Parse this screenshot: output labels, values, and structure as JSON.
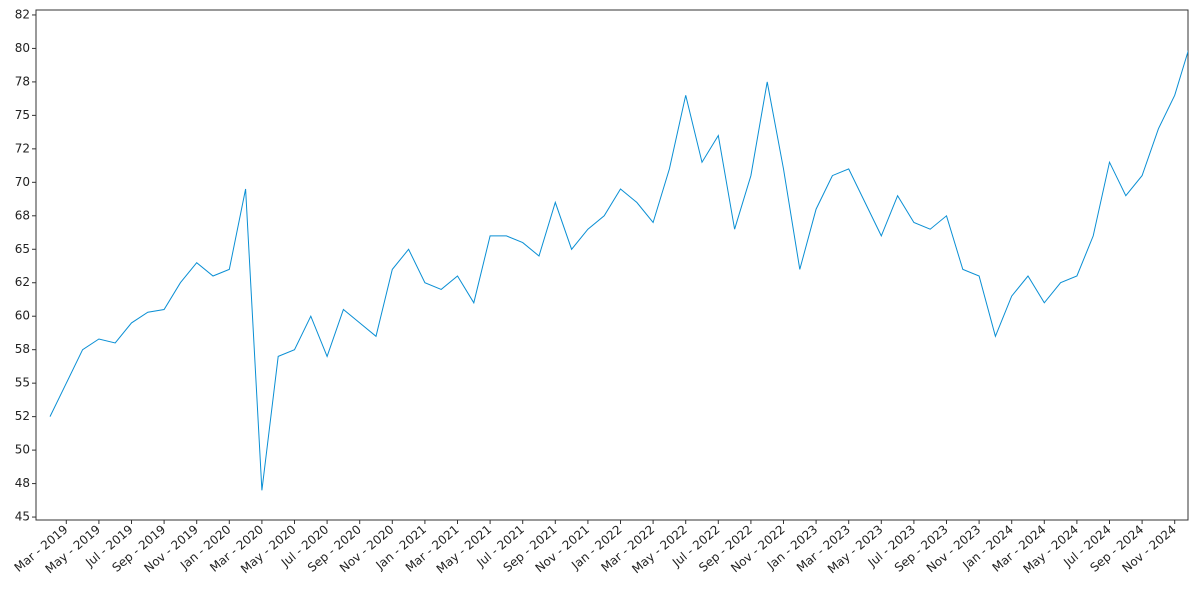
{
  "chart_data": {
    "type": "line",
    "categories": [
      null,
      "Mar - 2019",
      null,
      "May - 2019",
      null,
      "Jul - 2019",
      null,
      "Sep - 2019",
      null,
      "Nov - 2019",
      null,
      "Jan - 2020",
      null,
      "Mar - 2020",
      null,
      "May - 2020",
      null,
      "Jul - 2020",
      null,
      "Sep - 2020",
      null,
      "Nov - 2020",
      null,
      "Jan - 2021",
      null,
      "Mar - 2021",
      null,
      "May - 2021",
      null,
      "Jul - 2021",
      null,
      "Sep - 2021",
      null,
      "Nov - 2021",
      null,
      "Jan - 2022",
      null,
      "Mar - 2022",
      null,
      "May - 2022",
      null,
      "Jul - 2022",
      null,
      "Sep - 2022",
      null,
      "Nov - 2022",
      null,
      "Jan - 2023",
      null,
      "Mar - 2023",
      null,
      "May - 2023",
      null,
      "Jul - 2023",
      null,
      "Sep - 2023",
      null,
      "Nov - 2023",
      null,
      "Jan - 2024",
      null,
      "Mar - 2024",
      null,
      "May - 2024",
      null,
      "Jul - 2024",
      null,
      "Sep - 2024",
      null,
      "Nov - 2024",
      null
    ],
    "values": [
      52.5,
      55,
      57.5,
      58.3,
      58,
      59.5,
      60.3,
      60.5,
      62.5,
      64,
      63,
      63.5,
      69.5,
      47,
      57,
      57.5,
      60,
      57,
      60.5,
      59.5,
      58.5,
      63.5,
      65,
      62.5,
      62,
      63,
      61,
      66,
      66,
      65.5,
      64.5,
      68.5,
      65,
      66.5,
      67.5,
      69.5,
      68.5,
      67,
      71,
      76.5,
      71.5,
      73.5,
      66.5,
      70.5,
      77.5,
      71,
      63.5,
      68,
      70.5,
      71,
      68.5,
      66,
      69,
      67,
      66.5,
      67.5,
      63.5,
      63,
      58.5,
      61.5,
      63,
      61,
      62.5,
      63,
      66,
      71.5,
      69,
      70.5,
      74,
      76.5,
      80.5
    ],
    "color": "#0a8fd4",
    "ylim": [
      44.78,
      82.87
    ],
    "yticks": [
      45,
      {
        "value": 47.5,
        "label": "48"
      },
      50,
      {
        "value": 52.5,
        "label": "52"
      },
      55,
      {
        "value": 57.5,
        "label": "58"
      },
      60,
      {
        "value": 62.5,
        "label": "62"
      },
      65,
      {
        "value": 67.5,
        "label": "68"
      },
      70,
      {
        "value": 72.5,
        "label": "72"
      },
      75,
      {
        "value": 77.5,
        "label": "78"
      },
      80,
      {
        "value": 82.5,
        "label": "82"
      }
    ]
  }
}
